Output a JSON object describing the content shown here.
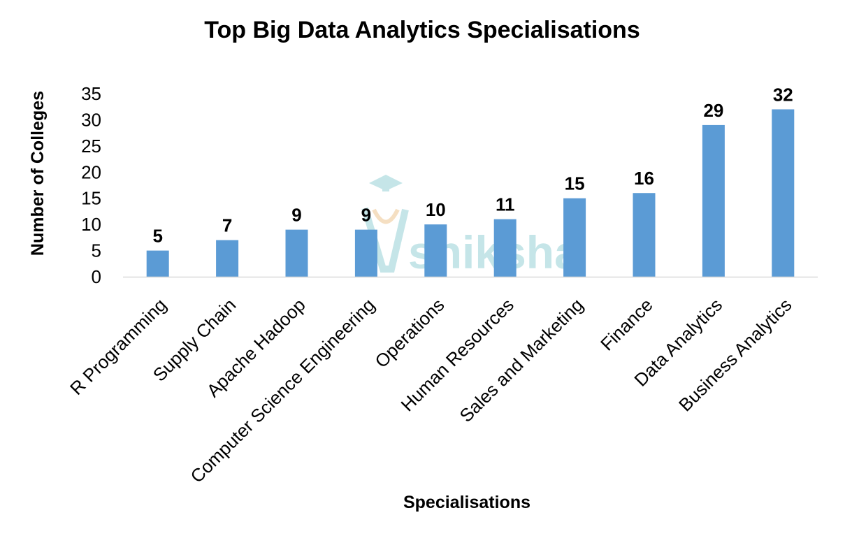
{
  "watermark": {
    "text": "shiksha",
    "color": "#bfe3e6"
  },
  "chart_data": {
    "type": "bar",
    "title": "Top Big Data Analytics Specialisations",
    "xlabel": "Specialisations",
    "ylabel": "Number of Colleges",
    "categories": [
      "R Programming",
      "Supply Chain",
      "Apache Hadoop",
      "Computer Science Engineering",
      "Operations",
      "Human Resources",
      "Sales and Marketing",
      "Finance",
      "Data Analytics",
      "Business Analytics"
    ],
    "values": [
      5,
      7,
      9,
      9,
      10,
      11,
      15,
      16,
      29,
      32
    ],
    "ylim": [
      0,
      35
    ],
    "yticks": [
      0,
      5,
      10,
      15,
      20,
      25,
      30,
      35
    ],
    "data_labels": true,
    "grid": false,
    "legend": "none",
    "bar_color": "#5b9bd5",
    "axis_color": "#d9d9d9"
  }
}
